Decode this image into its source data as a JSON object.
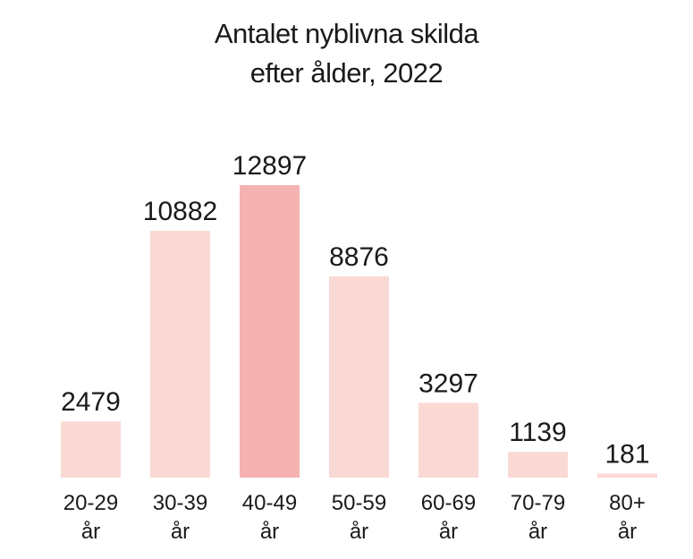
{
  "chart_data": {
    "type": "bar",
    "title": [
      "Antalet nyblivna skilda",
      "efter ålder, 2022"
    ],
    "categories": [
      [
        "20-29",
        "år"
      ],
      [
        "30-39",
        "år"
      ],
      [
        "40-49",
        "år"
      ],
      [
        "50-59",
        "år"
      ],
      [
        "60-69",
        "år"
      ],
      [
        "70-79",
        "år"
      ],
      [
        "80+",
        "år"
      ]
    ],
    "values": [
      2479,
      10882,
      12897,
      8876,
      3297,
      1139,
      181
    ],
    "value_labels": [
      "2479",
      "10882",
      "12897",
      "8876",
      "3297",
      "1139",
      "181"
    ],
    "highlight_index": 2,
    "colors": {
      "bar": "#fad9d5",
      "highlight": "#f4b3b0",
      "text": "#1a1a1a"
    },
    "grid": false,
    "legend": "none"
  }
}
